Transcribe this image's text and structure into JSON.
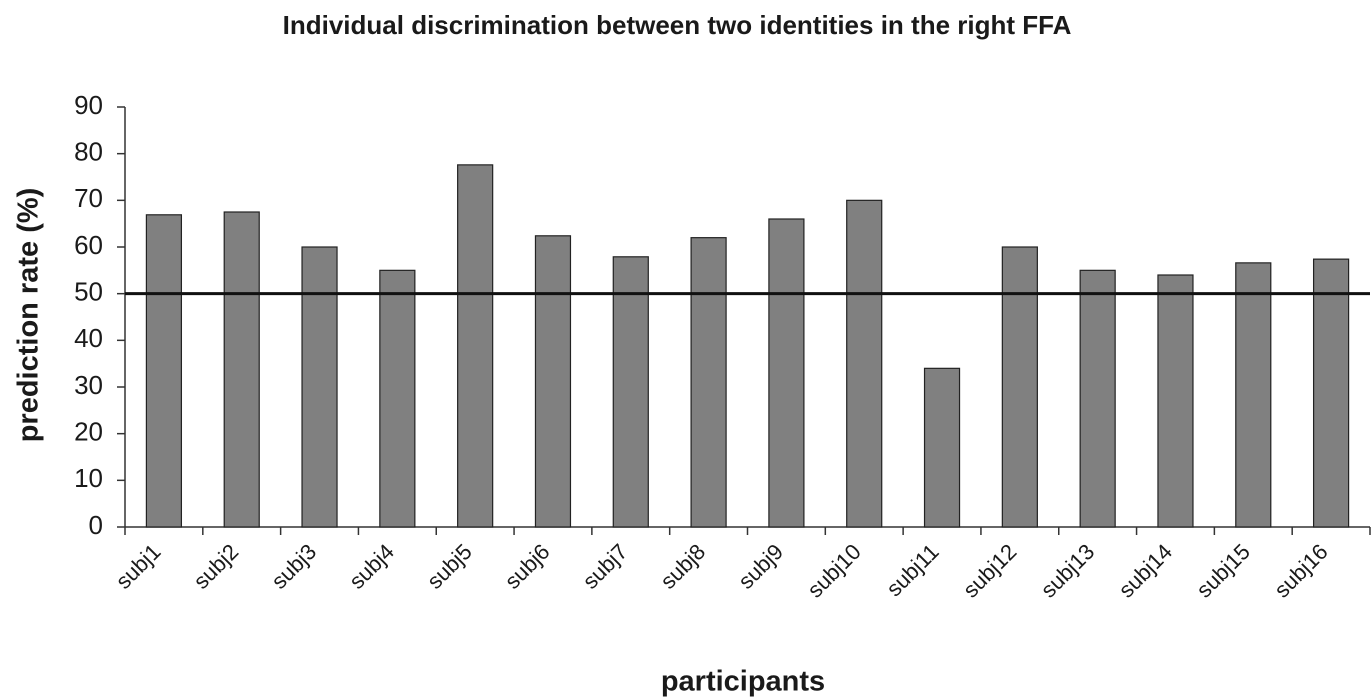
{
  "chart_data": {
    "type": "bar",
    "title": "Individual discrimination between two identities in the right FFA",
    "x_label": "participants",
    "y_label": "prediction rate (%)",
    "categories": [
      "subj1",
      "subj2",
      "subj3",
      "subj4",
      "subj5",
      "subj6",
      "subj7",
      "subj8",
      "subj9",
      "subj10",
      "subj11",
      "subj12",
      "subj13",
      "subj14",
      "subj15",
      "subj16"
    ],
    "values": [
      66.9,
      67.5,
      60,
      55,
      77.6,
      62.4,
      57.9,
      62,
      66,
      70,
      34,
      60,
      55,
      54,
      56.6,
      57.4
    ],
    "color": "#808080",
    "reference_line": 50,
    "ylim": [
      0,
      90
    ],
    "yticks": [
      0,
      10,
      20,
      30,
      40,
      50,
      60,
      70,
      80,
      90
    ],
    "grid": false
  }
}
